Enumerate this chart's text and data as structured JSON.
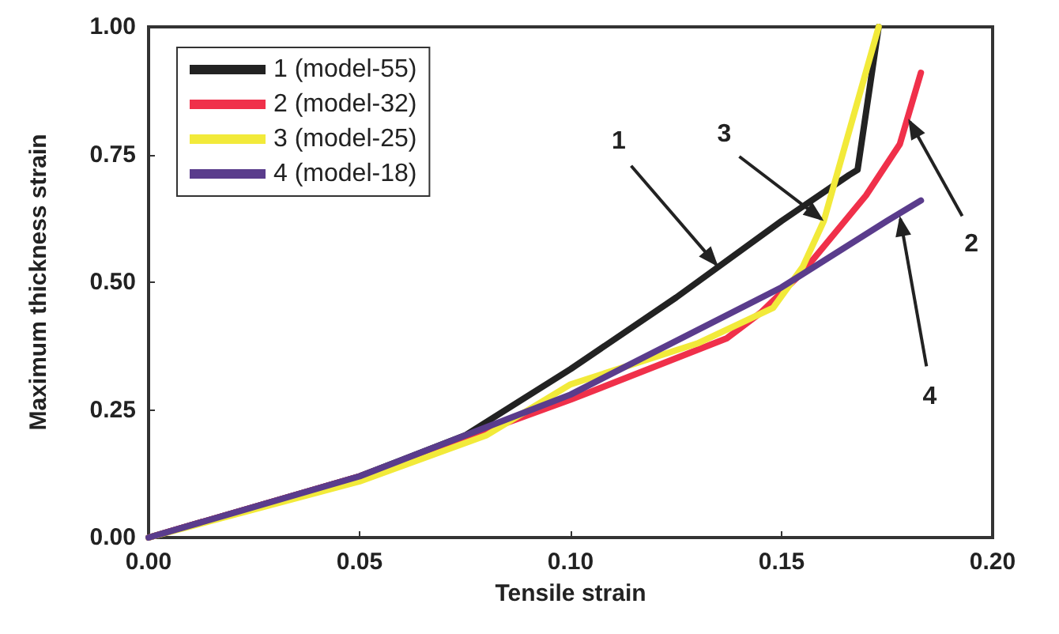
{
  "chart_data": {
    "type": "line",
    "xlabel": "Tensile strain",
    "ylabel": "Maximum thickness strain",
    "xlim": [
      0,
      0.2
    ],
    "xticks": [
      {
        "value": 0,
        "label": "0.00"
      },
      {
        "value": 0.05,
        "label": "0.05"
      },
      {
        "value": 0.1,
        "label": "0.10"
      },
      {
        "value": 0.15,
        "label": "0.15"
      },
      {
        "value": 0.2,
        "label": "0.20"
      }
    ],
    "ylim": [
      0,
      1
    ],
    "yticks": [
      {
        "value": 0,
        "label": "0.00"
      },
      {
        "value": 0.25,
        "label": "0.25"
      },
      {
        "value": 0.5,
        "label": "0.50"
      },
      {
        "value": 0.75,
        "label": "0.75"
      },
      {
        "value": 1,
        "label": "1.00"
      }
    ],
    "grid": false,
    "legend": "top left",
    "marker": "none",
    "line_style": "solid",
    "series": [
      {
        "name": "1 (model-55)",
        "color": "#222222",
        "x": [
          0,
          0.05,
          0.075,
          0.1,
          0.125,
          0.15,
          0.166,
          0.168,
          0.173
        ],
        "values": [
          0,
          0.12,
          0.2,
          0.33,
          0.47,
          0.62,
          0.71,
          0.72,
          1.0
        ]
      },
      {
        "name": "2 (model-32)",
        "color": "#f0304a",
        "x": [
          0,
          0.05,
          0.1,
          0.137,
          0.145,
          0.155,
          0.17,
          0.178,
          0.183
        ],
        "values": [
          0,
          0.12,
          0.27,
          0.39,
          0.44,
          0.52,
          0.67,
          0.77,
          0.91
        ]
      },
      {
        "name": "3 (model-25)",
        "color": "#f2ea3a",
        "x": [
          0,
          0.05,
          0.08,
          0.1,
          0.13,
          0.148,
          0.155,
          0.16,
          0.173
        ],
        "values": [
          0,
          0.11,
          0.2,
          0.3,
          0.38,
          0.45,
          0.53,
          0.62,
          1.0
        ]
      },
      {
        "name": "4 (model-18)",
        "color": "#5a3c8c",
        "x": [
          0,
          0.05,
          0.1,
          0.15,
          0.175,
          0.183
        ],
        "values": [
          0,
          0.12,
          0.28,
          0.49,
          0.62,
          0.66
        ]
      }
    ],
    "annotations": [
      {
        "text": "1",
        "x": 0.135,
        "y": 0.53
      },
      {
        "text": "2",
        "x": 0.18,
        "y": 0.82
      },
      {
        "text": "3",
        "x": 0.16,
        "y": 0.62
      },
      {
        "text": "4",
        "x": 0.178,
        "y": 0.63
      }
    ]
  }
}
